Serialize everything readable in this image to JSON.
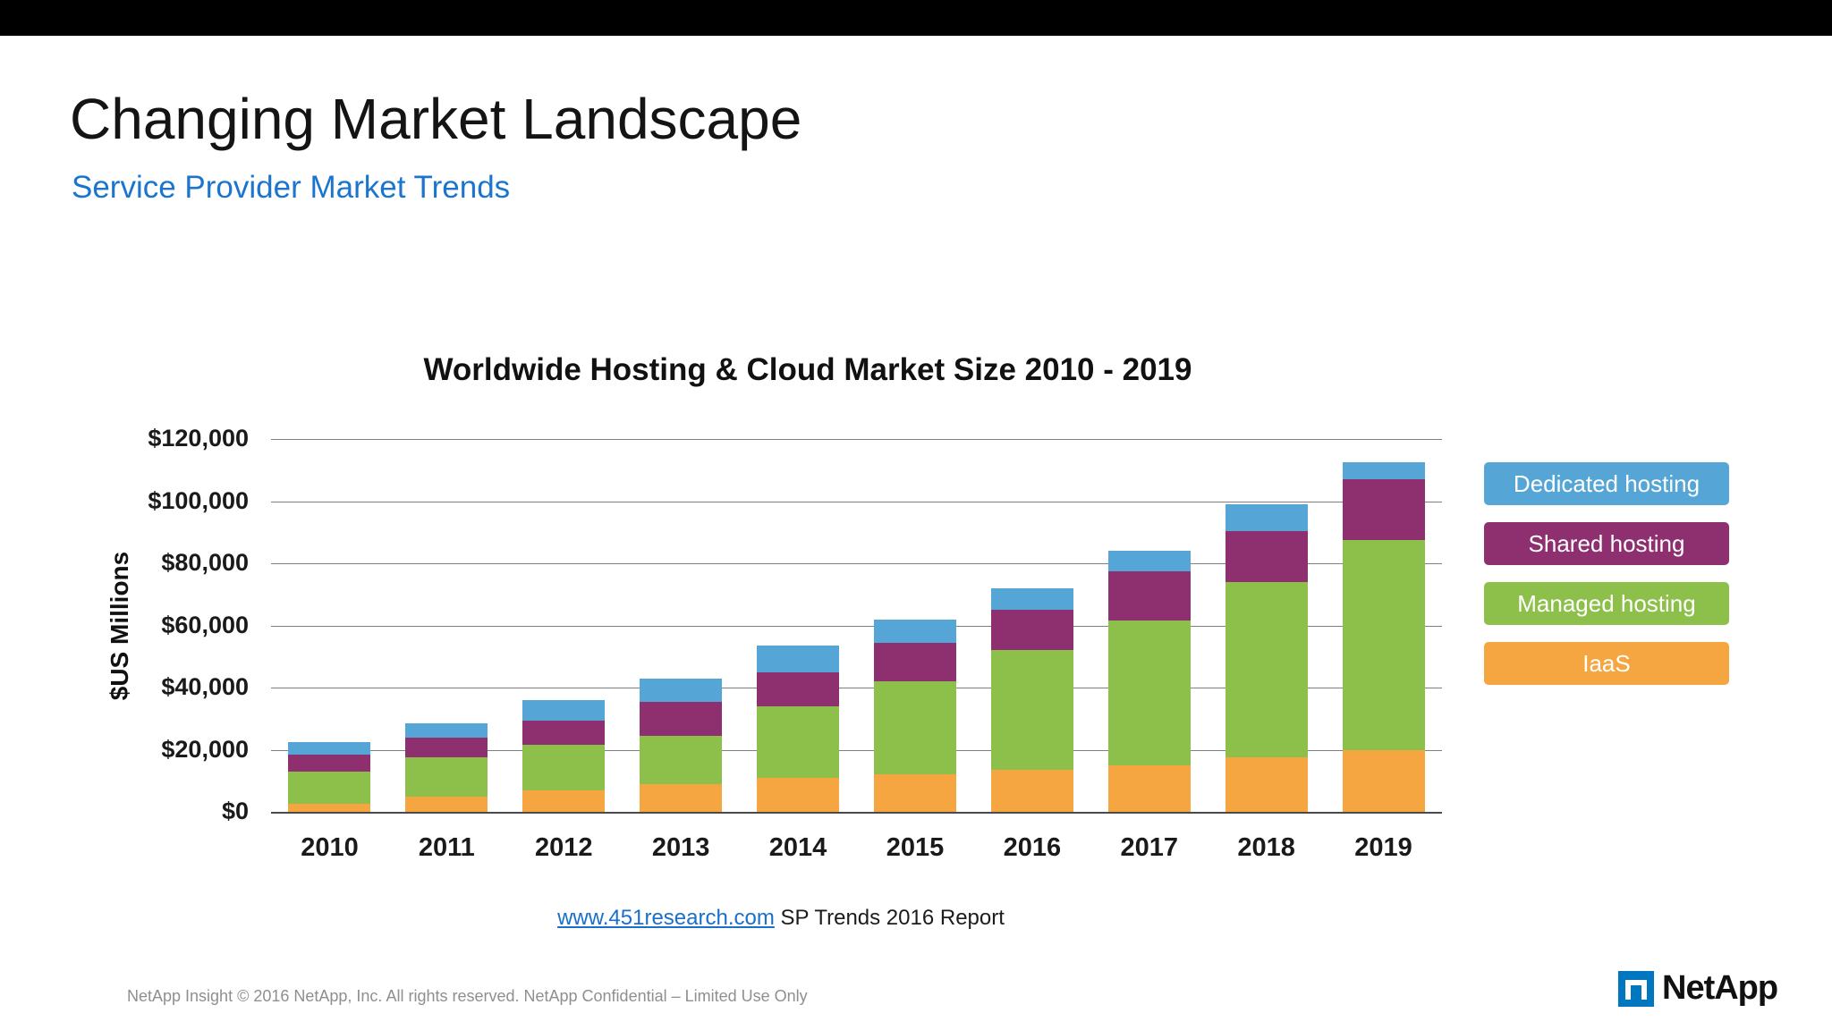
{
  "page": {
    "title": "Changing Market Landscape",
    "subtitle": "Service Provider Market Trends"
  },
  "chart_data": {
    "type": "bar",
    "stacked": true,
    "title": "Worldwide Hosting & Cloud Market Size 2010 - 2019",
    "xlabel": "",
    "ylabel": "$US Millions",
    "ylim": [
      0,
      120000
    ],
    "ytick_step": 20000,
    "yticks": [
      "$0",
      "$20,000",
      "$40,000",
      "$60,000",
      "$80,000",
      "$100,000",
      "$120,000"
    ],
    "grid": true,
    "legend_position": "right",
    "categories": [
      "2010",
      "2011",
      "2012",
      "2013",
      "2014",
      "2015",
      "2016",
      "2017",
      "2018",
      "2019"
    ],
    "series": [
      {
        "name": "IaaS",
        "color": "#f5a640",
        "values": [
          2500,
          5000,
          7000,
          9000,
          11000,
          12000,
          13500,
          15000,
          17500,
          20000
        ]
      },
      {
        "name": "Managed hosting",
        "color": "#8dc04a",
        "values": [
          10500,
          12500,
          14500,
          15500,
          23000,
          30000,
          38500,
          46500,
          56500,
          67500
        ]
      },
      {
        "name": "Shared hosting",
        "color": "#8e3070",
        "values": [
          5500,
          6500,
          8000,
          11000,
          11000,
          12500,
          13000,
          16000,
          16500,
          19500
        ]
      },
      {
        "name": "Dedicated hosting",
        "color": "#55a6d6",
        "values": [
          4000,
          4500,
          6500,
          7500,
          8500,
          7500,
          7000,
          6500,
          8500,
          5500
        ]
      }
    ],
    "legend": [
      {
        "label": "Dedicated hosting",
        "color": "#55a6d6"
      },
      {
        "label": "Shared hosting",
        "color": "#8e3070"
      },
      {
        "label": "Managed hosting",
        "color": "#8dc04a"
      },
      {
        "label": "IaaS",
        "color": "#f5a640"
      }
    ]
  },
  "source": {
    "link_text": "www.451research.com",
    "text_after": " SP Trends 2016 Report"
  },
  "footer": {
    "confidential": "NetApp Insight  © 2016 NetApp, Inc. All rights reserved. NetApp Confidential – Limited Use Only",
    "logo_text": "NetApp"
  },
  "colors": {
    "accent_blue": "#1b75ce",
    "link_blue": "#1a6fc9",
    "logo_blue": "#0077bf",
    "topbar_black": "#000000"
  }
}
